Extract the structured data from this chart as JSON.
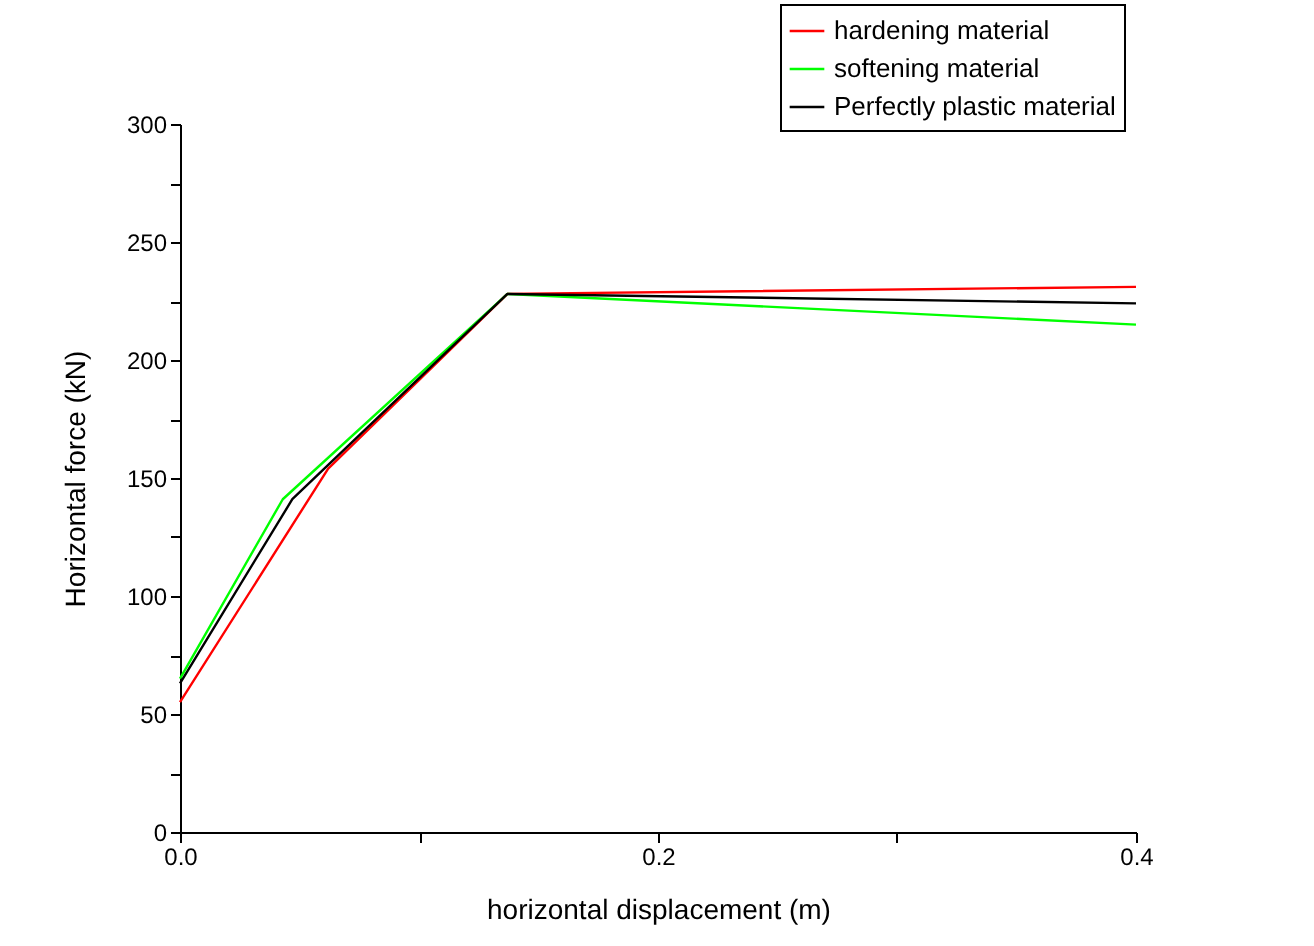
{
  "chart_data": {
    "type": "line",
    "xlabel": "horizontal displacement (m)",
    "ylabel": "Horizontal force (kN)",
    "xlim": [
      0,
      0.4
    ],
    "ylim": [
      0,
      300
    ],
    "xticks": [
      {
        "value": 0,
        "label": "0.0"
      },
      {
        "value": 0.1,
        "label": null
      },
      {
        "value": 0.2,
        "label": "0.2"
      },
      {
        "value": 0.3,
        "label": null
      },
      {
        "value": 0.4,
        "label": "0.4"
      }
    ],
    "yticks": [
      0,
      {
        "value": 25,
        "label": null
      },
      50,
      {
        "value": 75,
        "label": null
      },
      100,
      {
        "value": 125,
        "label": null
      },
      150,
      {
        "value": 175,
        "label": null
      },
      200,
      {
        "value": 225,
        "label": null
      },
      250,
      {
        "value": 275,
        "label": null
      },
      300
    ],
    "grid": false,
    "legend": "top right",
    "series": [
      {
        "name": "hardening material",
        "color": "#ff0000",
        "x": [
          0,
          0.062,
          0.137,
          0.4
        ],
        "values": [
          55,
          154,
          228,
          231
        ]
      },
      {
        "name": "softening material",
        "color": "#00ff00",
        "x": [
          0,
          0.043,
          0.137,
          0.4
        ],
        "values": [
          65,
          141,
          228,
          215
        ]
      },
      {
        "name": "Perfectly plastic material",
        "color": "#000000",
        "x": [
          0,
          0.047,
          0.137,
          0.4
        ],
        "values": [
          63,
          141,
          228,
          224
        ]
      }
    ]
  }
}
